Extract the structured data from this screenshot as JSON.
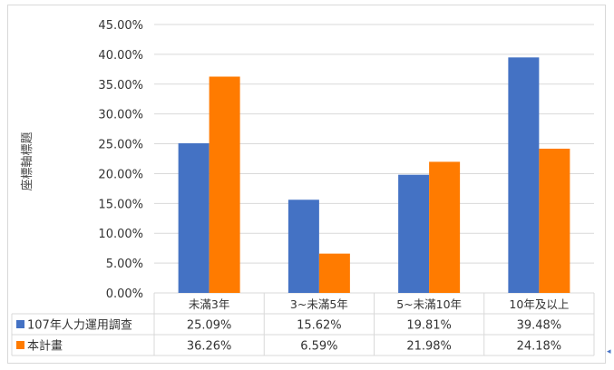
{
  "chart_data": {
    "type": "bar",
    "title": "",
    "xlabel": "",
    "ylabel": "座標軸標題",
    "categories": [
      "未滿3年",
      "3~未滿5年",
      "5~未滿10年",
      "10年及以上"
    ],
    "series": [
      {
        "name": "107年人力運用調查",
        "color": "#4472c4",
        "values": [
          25.09,
          15.62,
          19.81,
          39.48
        ],
        "labels": [
          "25.09%",
          "15.62%",
          "19.81%",
          "39.48%"
        ]
      },
      {
        "name": "本計畫",
        "color": "#ff7b00",
        "values": [
          36.26,
          6.59,
          21.98,
          24.18
        ],
        "labels": [
          "36.26%",
          "6.59%",
          "21.98%",
          "24.18%"
        ]
      }
    ],
    "ylim": [
      0,
      45
    ],
    "yticks": [
      0,
      5,
      10,
      15,
      20,
      25,
      30,
      35,
      40,
      45
    ],
    "ytick_labels": [
      "0.00%",
      "5.00%",
      "10.00%",
      "15.00%",
      "20.00%",
      "25.00%",
      "30.00%",
      "35.00%",
      "40.00%",
      "45.00%"
    ],
    "grid": true,
    "legend": "data-table",
    "grid_color": "#d9d9d9"
  },
  "corner_mark": "◂"
}
